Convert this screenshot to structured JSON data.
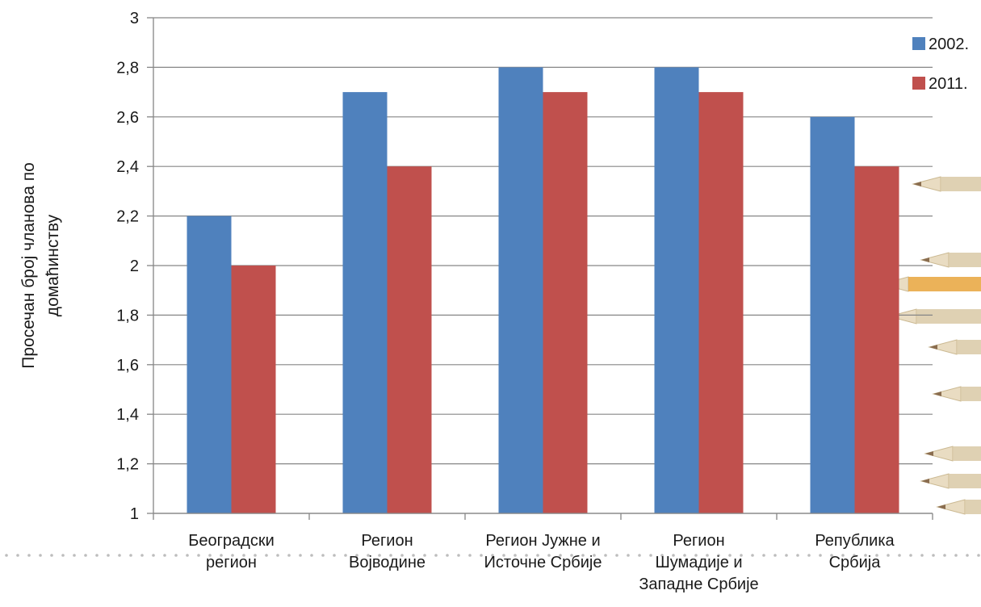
{
  "chart_data": {
    "type": "bar",
    "title": "",
    "xlabel": "",
    "ylabel": [
      "Просечан број чланова по",
      "домаћинству"
    ],
    "ylim": [
      1,
      3
    ],
    "yticks": [
      "1",
      "1,2",
      "1,4",
      "1,6",
      "1,8",
      "2",
      "2,2",
      "2,4",
      "2,6",
      "2,8",
      "3"
    ],
    "ytick_values": [
      1,
      1.2,
      1.4,
      1.6,
      1.8,
      2,
      2.2,
      2.4,
      2.6,
      2.8,
      3
    ],
    "categories": [
      [
        "Београдски",
        "регион"
      ],
      [
        "Регион",
        "Војводине"
      ],
      [
        "Регион Јужне и",
        "Источне Србије"
      ],
      [
        "Регион",
        "Шумадије и",
        "Западне Србије"
      ],
      [
        "Република",
        "Србија"
      ]
    ],
    "series": [
      {
        "name": "2002.",
        "color": "#4f81bd",
        "values": [
          2.2,
          2.7,
          2.8,
          2.8,
          2.6
        ]
      },
      {
        "name": "2011.",
        "color": "#c0504d",
        "values": [
          2.0,
          2.4,
          2.7,
          2.7,
          2.4
        ]
      }
    ],
    "grid": true,
    "legend": "top-right"
  },
  "colors": {
    "grid": "#868686",
    "axis": "#868686",
    "dotted_rule": "#bdbdbd",
    "pencils": [
      "#e8a53c",
      "#d9c9a6",
      "#8a6d4f"
    ]
  }
}
